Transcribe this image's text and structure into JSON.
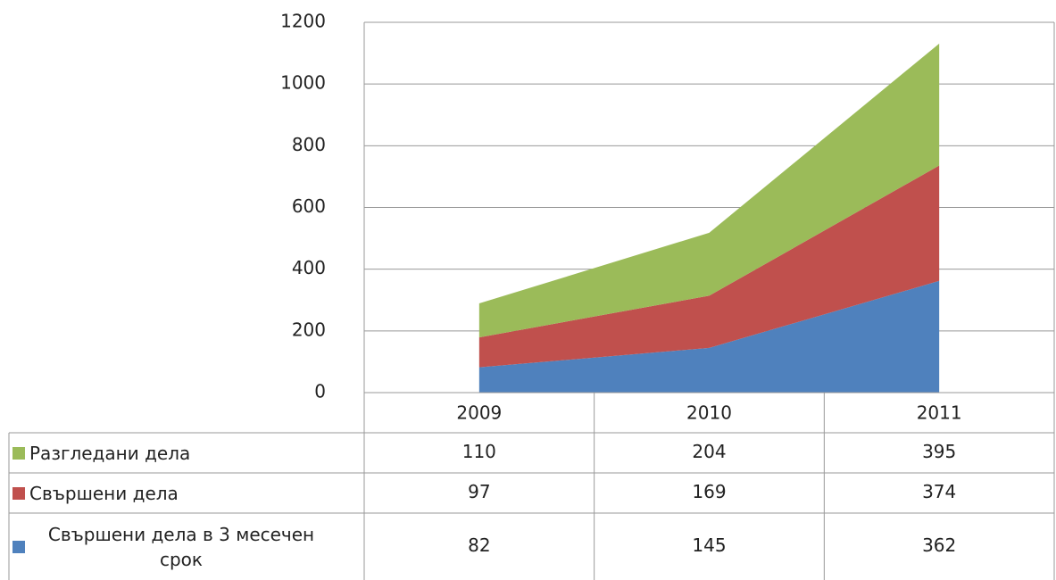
{
  "chart_data": {
    "type": "area",
    "stacked": true,
    "categories": [
      "2009",
      "2010",
      "2011"
    ],
    "series": [
      {
        "name": "Разгледани дела",
        "color": "#9bbb59",
        "values": [
          110,
          204,
          395
        ]
      },
      {
        "name": "Свършени дела",
        "color": "#c0504d",
        "values": [
          97,
          169,
          374
        ]
      },
      {
        "name": "Свършени дела в 3 месечен срок",
        "color": "#4f81bd",
        "values": [
          82,
          145,
          362
        ]
      }
    ],
    "ylim": [
      0,
      1200
    ],
    "yticks": [
      0,
      200,
      400,
      600,
      800,
      1000,
      1200
    ],
    "grid": true,
    "data_table": true
  }
}
